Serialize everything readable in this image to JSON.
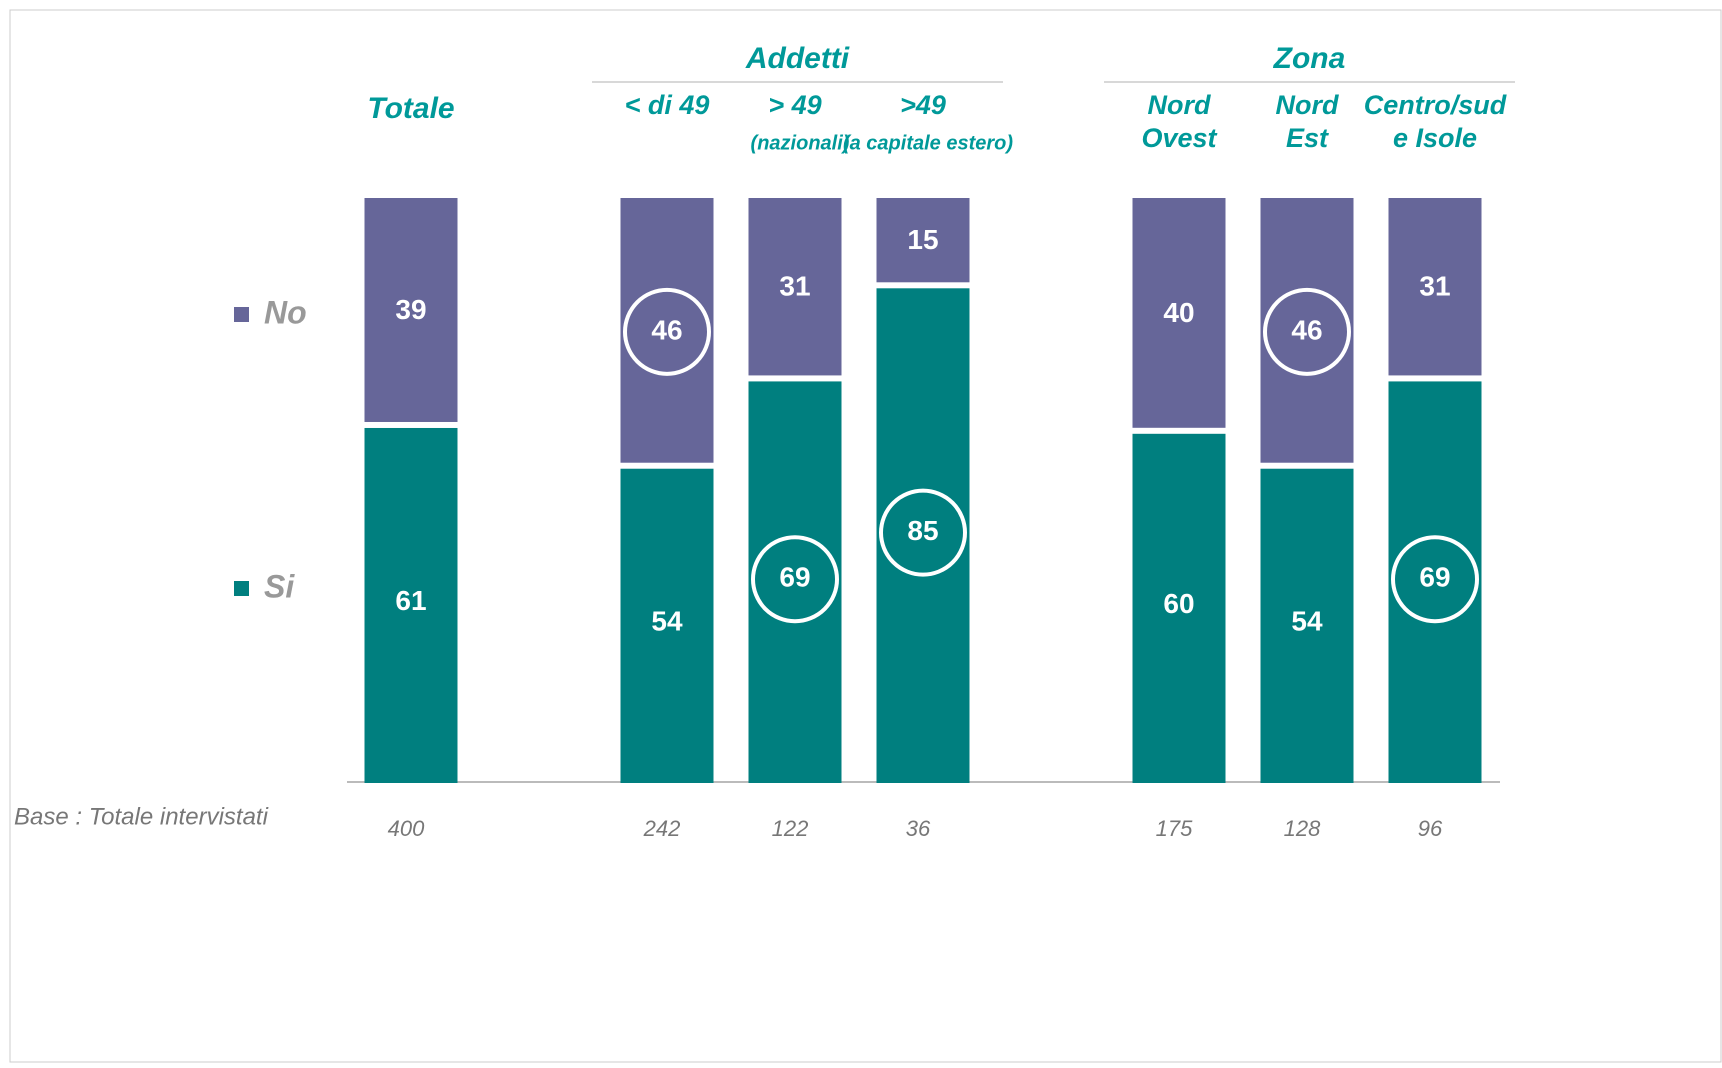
{
  "chart_data": {
    "type": "stacked_bar",
    "categories": [
      [
        "Totale"
      ],
      [
        "< di 49"
      ],
      [
        "> 49",
        "(nazionali)"
      ],
      [
        ">49",
        "(a capitale estero)"
      ],
      [
        "Nord",
        "Ovest"
      ],
      [
        "Nord",
        "Est"
      ],
      [
        "Centro/sud",
        "e Isole"
      ]
    ],
    "category_groups": [
      null,
      "Addetti",
      "Addetti",
      "Addetti",
      "Zona",
      "Zona",
      "Zona"
    ],
    "series": [
      {
        "name": "Si",
        "color": "#007f7f",
        "values": [
          61,
          54,
          69,
          85,
          60,
          54,
          69
        ],
        "highlight": [
          false,
          false,
          true,
          true,
          false,
          false,
          true
        ]
      },
      {
        "name": "No",
        "color": "#666699",
        "values": [
          39,
          46,
          31,
          15,
          40,
          46,
          31
        ],
        "highlight": [
          false,
          true,
          false,
          false,
          false,
          true,
          false
        ]
      }
    ],
    "ylim": [
      0,
      100
    ],
    "base_label": "Base : Totale intervistati",
    "base_values": [
      400,
      242,
      122,
      36,
      175,
      128,
      96
    ]
  }
}
